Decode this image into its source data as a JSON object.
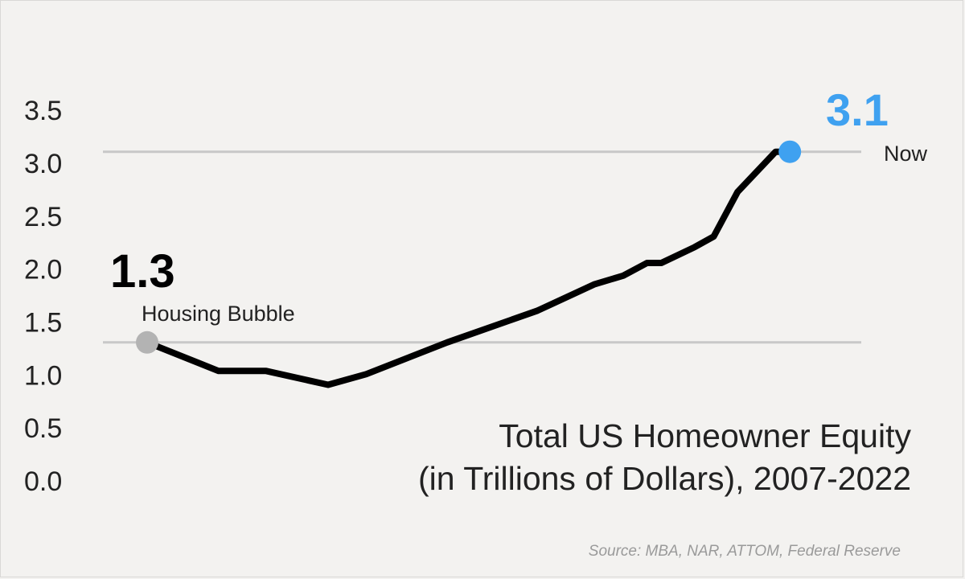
{
  "chart_data": {
    "type": "line",
    "title_lines": [
      "Total US Homeowner Equity",
      "(in Trillions of Dollars), 2007-2022"
    ],
    "x_range": [
      2007,
      2022
    ],
    "ylim": [
      0,
      3.5
    ],
    "yticks": [
      "0.0",
      "0.5",
      "1.0",
      "1.5",
      "2.0",
      "2.5",
      "3.0",
      "3.5"
    ],
    "y_values": [
      0,
      0.5,
      1.0,
      1.5,
      2.0,
      2.5,
      3.0,
      3.5
    ],
    "grid": false,
    "reference_lines": [
      1.3,
      3.1
    ],
    "series": [
      {
        "values": [
          {
            "x": 2007.0,
            "y": 1.3
          },
          {
            "x": 2008.5,
            "y": 1.03
          },
          {
            "x": 2009.5,
            "y": 1.03
          },
          {
            "x": 2010.8,
            "y": 0.9
          },
          {
            "x": 2011.6,
            "y": 1.0
          },
          {
            "x": 2013.3,
            "y": 1.3
          },
          {
            "x": 2015.2,
            "y": 1.6
          },
          {
            "x": 2016.4,
            "y": 1.85
          },
          {
            "x": 2017.0,
            "y": 1.93
          },
          {
            "x": 2017.5,
            "y": 2.05
          },
          {
            "x": 2017.8,
            "y": 2.05
          },
          {
            "x": 2018.5,
            "y": 2.2
          },
          {
            "x": 2018.9,
            "y": 2.3
          },
          {
            "x": 2019.4,
            "y": 2.72
          },
          {
            "x": 2020.2,
            "y": 3.1
          },
          {
            "x": 2020.5,
            "y": 3.1
          }
        ]
      }
    ],
    "annotations": [
      {
        "value_label": "1.3",
        "text": "Housing Bubble",
        "color": "#000000",
        "marker_color": "#b3b3b3"
      },
      {
        "value_label": "3.1",
        "text": "Now",
        "color": "#3fa1f0",
        "marker_color": "#3fa1f0"
      }
    ],
    "source": "Source: MBA, NAR, ATTOM, Federal Reserve"
  }
}
